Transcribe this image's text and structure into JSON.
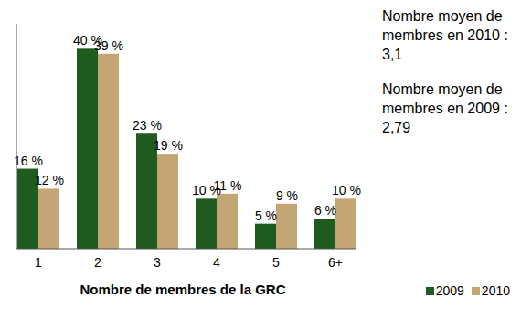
{
  "chart_data": {
    "type": "bar",
    "x_label": "Nombre de membres de la GRC",
    "categories": [
      "1",
      "2",
      "3",
      "4",
      "5",
      "6+"
    ],
    "series": [
      {
        "name": "2009",
        "color": "#1f5a1f",
        "values": [
          16,
          40,
          23,
          10,
          5,
          6
        ],
        "value_labels": [
          "16 %",
          "40 %",
          "23 %",
          "10 %",
          "5 %",
          "6 %"
        ]
      },
      {
        "name": "2010",
        "color": "#c4a574",
        "values": [
          12,
          39,
          19,
          11,
          9,
          10
        ],
        "value_labels": [
          "12 %",
          "39 %",
          "19 %",
          "11 %",
          "9 %",
          "10 %"
        ]
      }
    ],
    "ylim": [
      0,
      45
    ],
    "data_labels": true,
    "tick_labels": "x",
    "legend": "bottom-right",
    "annotations": [
      "Nombre moyen de membres en 2010 : 3,1",
      "Nombre moyen de membres en 2009 : 2,79"
    ]
  }
}
